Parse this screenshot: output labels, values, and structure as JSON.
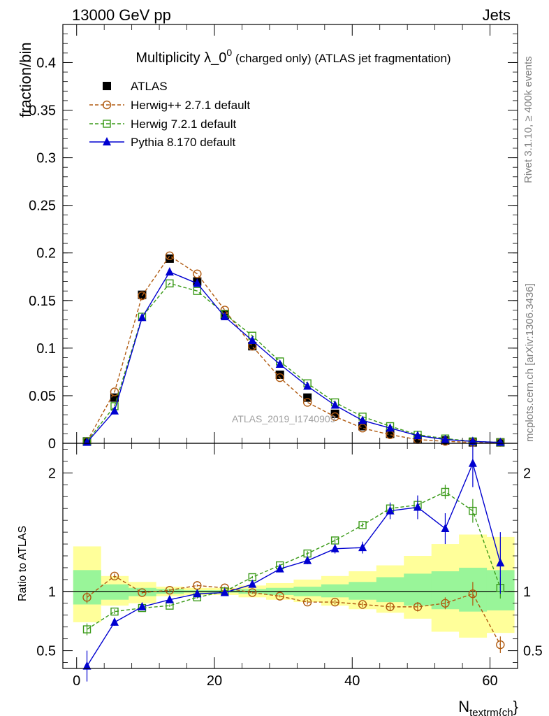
{
  "header": {
    "left": "13000 GeV pp",
    "right": "Jets"
  },
  "side": {
    "rivet": "Rivet 3.1.10, ≥ 400k events",
    "mcplots": "mcplots.cern.ch [arXiv:1306.3436]"
  },
  "title": {
    "main": "Multiplicity λ_0",
    "sup": "0",
    "rest": " (charged only) (ATLAS jet fragmentation)"
  },
  "watermark": "ATLAS_2019_I1740909",
  "colors": {
    "atlas": "#000000",
    "herwigpp": "#b05a10",
    "herwig7": "#3a9a18",
    "pythia": "#0000d0",
    "band_green": "#99f599",
    "band_yellow": "#ffff9a"
  },
  "chart_data": [
    {
      "type": "line",
      "ylabel": "fraction/bin",
      "xlim": [
        -2,
        64
      ],
      "ylim": [
        0,
        0.44
      ],
      "yticks": [
        "0",
        "0.05",
        "0.1",
        "0.15",
        "0.2",
        "0.25",
        "0.3",
        "0.35",
        "0.4"
      ],
      "legend_placement": "top-left",
      "x": [
        1.5,
        5.5,
        9.5,
        13.5,
        17.5,
        21.5,
        25.5,
        29.5,
        33.5,
        37.5,
        41.5,
        45.5,
        49.5,
        53.5,
        57.5,
        61.5
      ],
      "series": [
        {
          "name": "ATLAS",
          "marker": "square-filled",
          "values": [
            0.002,
            0.048,
            0.156,
            0.194,
            0.17,
            0.135,
            0.102,
            0.072,
            0.048,
            0.031,
            0.018,
            0.01,
            0.005,
            0.003,
            0.001,
            0.001
          ]
        },
        {
          "name": "Herwig++ 2.7.1 default",
          "marker": "circle-open",
          "dash": true,
          "values": [
            0.002,
            0.054,
            0.155,
            0.197,
            0.178,
            0.14,
            0.102,
            0.069,
            0.043,
            0.028,
            0.016,
            0.009,
            0.004,
            0.002,
            0.001,
            0.001
          ]
        },
        {
          "name": "Herwig 7.2.1 default",
          "marker": "square-open",
          "dash": true,
          "values": [
            0.002,
            0.039,
            0.133,
            0.168,
            0.16,
            0.136,
            0.113,
            0.086,
            0.063,
            0.043,
            0.028,
            0.018,
            0.009,
            0.005,
            0.002,
            0.001
          ]
        },
        {
          "name": "Pythia 8.170 default",
          "marker": "triangle-filled",
          "values": [
            0.001,
            0.034,
            0.132,
            0.18,
            0.168,
            0.133,
            0.108,
            0.083,
            0.06,
            0.04,
            0.024,
            0.016,
            0.008,
            0.004,
            0.002,
            0.001
          ]
        }
      ]
    },
    {
      "type": "line",
      "ylabel": "Ratio to ATLAS",
      "xlabel": "N",
      "xlabel_sub": "textrm{ch",
      "xlabel_end": "}",
      "xlim": [
        -2,
        64
      ],
      "ylim": [
        0.35,
        2.25
      ],
      "xticks": [
        "0",
        "20",
        "40",
        "60"
      ],
      "yticks": [
        "0.5",
        "1",
        "2"
      ],
      "bands": [
        {
          "name": "band_yellow",
          "lo": [
            0.74,
            0.88,
            0.9,
            0.96,
            0.97,
            0.97,
            0.95,
            0.93,
            0.91,
            0.88,
            0.85,
            0.82,
            0.77,
            0.66,
            0.61,
            0.65
          ],
          "hi": [
            1.38,
            1.13,
            1.08,
            1.04,
            1.03,
            1.03,
            1.05,
            1.07,
            1.1,
            1.13,
            1.17,
            1.22,
            1.3,
            1.4,
            1.48,
            1.46
          ]
        },
        {
          "name": "band_green",
          "lo": [
            0.89,
            0.93,
            0.96,
            0.98,
            0.99,
            0.99,
            0.98,
            0.97,
            0.96,
            0.95,
            0.93,
            0.91,
            0.88,
            0.85,
            0.83,
            0.84
          ],
          "hi": [
            1.18,
            1.06,
            1.03,
            1.02,
            1.01,
            1.01,
            1.02,
            1.03,
            1.04,
            1.06,
            1.08,
            1.12,
            1.15,
            1.17,
            1.2,
            1.18
          ]
        }
      ],
      "series": [
        {
          "name": "Herwig++ 2.7.1 default",
          "marker": "circle-open",
          "dash": true,
          "values": [
            0.95,
            1.13,
            0.99,
            1.01,
            1.05,
            1.03,
            0.99,
            0.96,
            0.91,
            0.91,
            0.89,
            0.87,
            0.87,
            0.9,
            0.98,
            0.55
          ],
          "err": [
            0.05,
            0.02,
            0.01,
            0.01,
            0.01,
            0.01,
            0.01,
            0.01,
            0.02,
            0.02,
            0.02,
            0.03,
            0.04,
            0.05,
            0.1,
            0.07
          ]
        },
        {
          "name": "Herwig 7.2.1 default",
          "marker": "square-open",
          "dash": true,
          "values": [
            0.68,
            0.83,
            0.86,
            0.88,
            0.95,
            1.0,
            1.12,
            1.22,
            1.32,
            1.43,
            1.56,
            1.7,
            1.73,
            1.84,
            1.68,
            1.03
          ],
          "err": [
            0.05,
            0.02,
            0.01,
            0.01,
            0.01,
            0.01,
            0.01,
            0.01,
            0.02,
            0.02,
            0.02,
            0.03,
            0.05,
            0.06,
            0.1,
            0.09
          ]
        },
        {
          "name": "Pythia 8.170 default",
          "marker": "triangle-filled",
          "values": [
            0.37,
            0.74,
            0.87,
            0.93,
            0.98,
            0.99,
            1.06,
            1.19,
            1.26,
            1.36,
            1.37,
            1.68,
            1.71,
            1.53,
            2.08,
            1.24
          ],
          "err": [
            0.13,
            0.03,
            0.01,
            0.01,
            0.01,
            0.01,
            0.02,
            0.02,
            0.03,
            0.04,
            0.05,
            0.07,
            0.1,
            0.13,
            0.2,
            0.26
          ]
        }
      ]
    }
  ]
}
